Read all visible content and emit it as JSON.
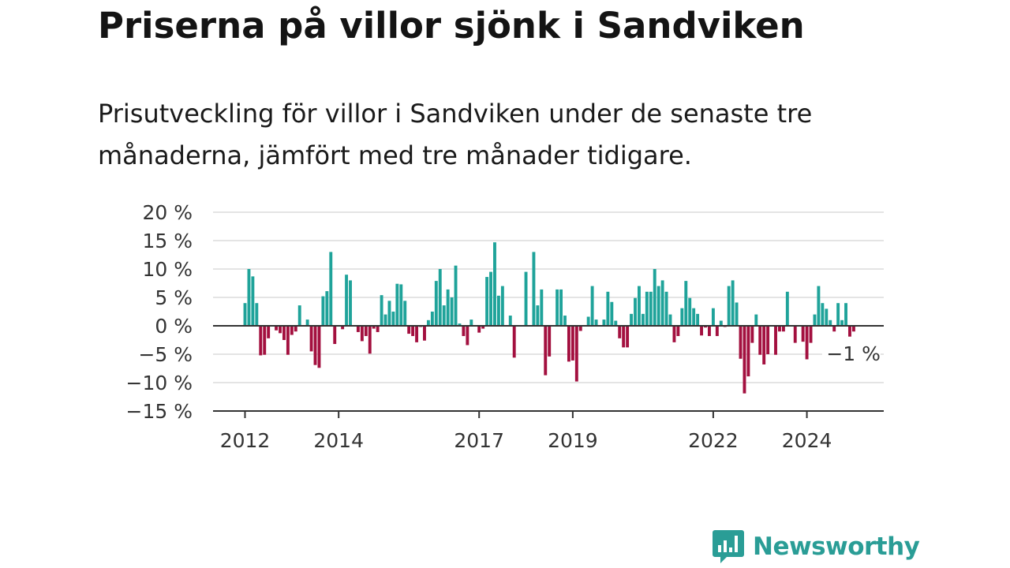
{
  "title": "Priserna på villor sjönk i Sandviken",
  "subtitle": "Prisutveckling för villor i Sandviken under de senaste tre månaderna, jämfört med tre månader tidigare.",
  "brand": {
    "name": "Newsworthy",
    "icon": "newsworthy-logo-icon",
    "color": "#2a9d96"
  },
  "colors": {
    "positive": "#1fa39a",
    "negative": "#a3103f"
  },
  "chart_data": {
    "type": "bar",
    "title": "Priserna på villor sjönk i Sandviken",
    "subtitle": "Prisutveckling för villor i Sandviken under de senaste tre månaderna, jämfört med tre månader tidigare.",
    "xlabel": "",
    "ylabel": "",
    "y_unit": "%",
    "ylim": [
      -15,
      20
    ],
    "yticks": [
      20,
      15,
      10,
      5,
      0,
      -5,
      -10,
      -15
    ],
    "ytick_labels": [
      "20 %",
      "15 %",
      "10 %",
      "5 %",
      "0 %",
      "−5 %",
      "−10 %",
      "−15 %"
    ],
    "grid": true,
    "x_start": "2012-01",
    "x_end": "2025-02",
    "xticks": [
      {
        "date": "2012-01",
        "label": "2012"
      },
      {
        "date": "2014-01",
        "label": "2014"
      },
      {
        "date": "2017-01",
        "label": "2017"
      },
      {
        "date": "2019-01",
        "label": "2019"
      },
      {
        "date": "2022-01",
        "label": "2022"
      },
      {
        "date": "2024-01",
        "label": "2024"
      }
    ],
    "last_value_label": "−1 %",
    "values": [
      4,
      10,
      8.7,
      4,
      -5.2,
      -5.1,
      -2.2,
      0,
      -0.8,
      -1.3,
      -2.5,
      -5.1,
      -1.6,
      -1,
      3.6,
      0,
      1.1,
      -4.5,
      -6.9,
      -7.4,
      5.2,
      6.1,
      13,
      -3.2,
      0,
      -0.6,
      9,
      8,
      0,
      -1.1,
      -2.7,
      -1.8,
      -4.9,
      -0.5,
      -1.1,
      5.4,
      2,
      4.4,
      2.5,
      7.4,
      7.3,
      4.4,
      -1.4,
      -1.8,
      -2.9,
      -0.2,
      -2.6,
      1,
      2.5,
      7.9,
      10,
      3.6,
      6.4,
      5,
      10.6,
      0.4,
      -1.8,
      -3.4,
      1.1,
      0,
      -1.2,
      -0.5,
      8.6,
      9.5,
      14.7,
      5.3,
      7,
      0,
      1.8,
      -5.6,
      0,
      0,
      9.5,
      0,
      13,
      3.6,
      6.4,
      -8.7,
      -5.4,
      0,
      6.4,
      6.4,
      1.8,
      -6.3,
      -6.1,
      -9.8,
      -0.9,
      0,
      1.6,
      7,
      1.1,
      0,
      1.1,
      6,
      4.2,
      0.9,
      -2.2,
      -3.8,
      -3.8,
      2.1,
      4.9,
      7,
      2.1,
      6,
      6,
      10,
      7,
      8,
      6,
      2,
      -2.9,
      -1.8,
      3.1,
      7.9,
      4.9,
      3.1,
      2.1,
      -1.7,
      -0.3,
      -1.8,
      3.1,
      -1.8,
      0.9,
      -0.2,
      7,
      8,
      4.1,
      -5.8,
      -11.9,
      -8.9,
      -3,
      2,
      -5.1,
      -6.8,
      -5,
      0,
      -5.1,
      -1,
      -1,
      6,
      0,
      -3,
      0,
      -2.8,
      -5.9,
      -3,
      2,
      7,
      4,
      3,
      1,
      -1,
      4,
      1,
      4,
      -1.9,
      -1
    ]
  }
}
